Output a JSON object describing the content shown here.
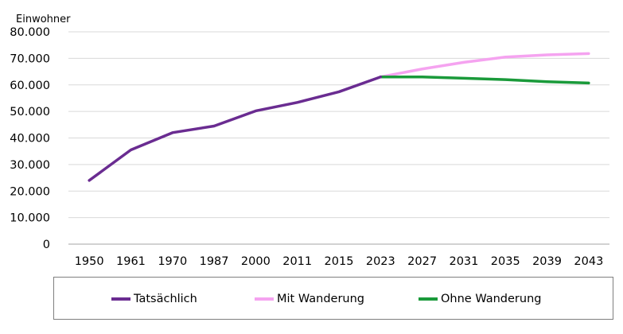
{
  "chart_data": {
    "type": "line",
    "ylabel": "Einwohner",
    "ylim": [
      0,
      80000
    ],
    "yticks": [
      "0",
      "10.000",
      "20.000",
      "30.000",
      "40.000",
      "50.000",
      "60.000",
      "70.000",
      "80.000"
    ],
    "categories": [
      "1950",
      "1961",
      "1970",
      "1987",
      "2000",
      "2011",
      "2015",
      "2023",
      "2027",
      "2031",
      "2035",
      "2039",
      "2043"
    ],
    "grid": "horizontal",
    "legend": "bottom",
    "series": [
      {
        "name": "Tatsächlich",
        "color": "#6a2c91",
        "values": [
          24000,
          35500,
          42000,
          44500,
          50200,
          53400,
          57400,
          63000,
          null,
          null,
          null,
          null,
          null
        ]
      },
      {
        "name": "Mit Wanderung",
        "color": "#f5a3f0",
        "values": [
          null,
          null,
          null,
          null,
          null,
          null,
          null,
          63000,
          66000,
          68500,
          70500,
          71300,
          71800
        ]
      },
      {
        "name": "Ohne Wanderung",
        "color": "#1a9a3a",
        "values": [
          null,
          null,
          null,
          null,
          null,
          null,
          null,
          63000,
          63000,
          62500,
          62000,
          61200,
          60700
        ]
      }
    ]
  }
}
